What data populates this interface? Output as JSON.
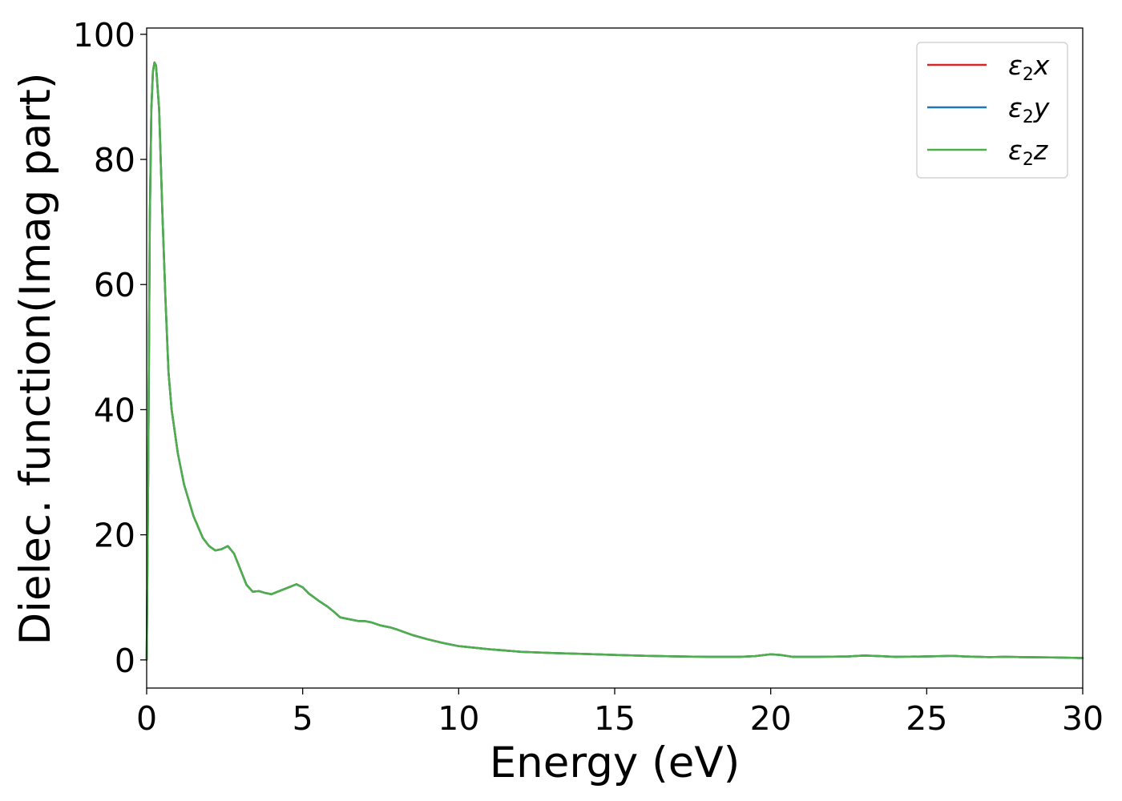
{
  "chart_data": {
    "type": "line",
    "title": "",
    "xlabel": "Energy (eV)",
    "ylabel": "Dielec. function(Imag part)",
    "xlim": [
      0,
      30
    ],
    "ylim": [
      -4.5,
      101
    ],
    "xticks": [
      0,
      5,
      10,
      15,
      20,
      25,
      30
    ],
    "yticks": [
      0,
      20,
      40,
      60,
      80,
      100
    ],
    "grid": false,
    "legend_position": "upper right",
    "x": [
      0,
      0.05,
      0.1,
      0.15,
      0.2,
      0.25,
      0.3,
      0.4,
      0.5,
      0.6,
      0.7,
      0.8,
      1.0,
      1.2,
      1.5,
      1.8,
      2.0,
      2.2,
      2.4,
      2.6,
      2.8,
      3.0,
      3.2,
      3.4,
      3.6,
      3.8,
      4.0,
      4.2,
      4.5,
      4.8,
      5.0,
      5.2,
      5.5,
      5.8,
      6.0,
      6.2,
      6.5,
      6.8,
      7.0,
      7.2,
      7.5,
      7.8,
      8.0,
      8.5,
      9.0,
      9.5,
      10.0,
      11.0,
      12.0,
      13.0,
      14.0,
      15.0,
      16.0,
      17.0,
      18.0,
      19.0,
      19.5,
      20.0,
      20.3,
      20.7,
      21.5,
      22.5,
      23.0,
      23.5,
      24.0,
      25.0,
      25.5,
      25.8,
      26.2,
      27.0,
      27.5,
      28.0,
      29.0,
      30.0
    ],
    "series": [
      {
        "name": "ε2x",
        "color": "#d62728",
        "values": [
          0,
          30,
          70,
          88,
          94,
          95.5,
          95,
          88,
          72,
          58,
          46,
          40,
          33,
          28,
          23,
          19.5,
          18.2,
          17.5,
          17.7,
          18.2,
          17,
          14.5,
          12,
          10.9,
          11,
          10.7,
          10.5,
          10.9,
          11.5,
          12.1,
          11.6,
          10.6,
          9.5,
          8.5,
          7.7,
          6.8,
          6.5,
          6.2,
          6.2,
          6.0,
          5.5,
          5.2,
          4.9,
          4.0,
          3.3,
          2.7,
          2.2,
          1.7,
          1.3,
          1.1,
          0.95,
          0.8,
          0.65,
          0.55,
          0.5,
          0.5,
          0.6,
          0.9,
          0.8,
          0.5,
          0.5,
          0.55,
          0.7,
          0.6,
          0.5,
          0.55,
          0.6,
          0.65,
          0.55,
          0.45,
          0.5,
          0.45,
          0.4,
          0.3
        ]
      },
      {
        "name": "ε2y",
        "color": "#1f77b4",
        "values": [
          0,
          30,
          70,
          88,
          94,
          95.5,
          95,
          88,
          72,
          58,
          46,
          40,
          33,
          28,
          23,
          19.5,
          18.2,
          17.5,
          17.7,
          18.2,
          17,
          14.5,
          12,
          10.9,
          11,
          10.7,
          10.5,
          10.9,
          11.5,
          12.1,
          11.6,
          10.6,
          9.5,
          8.5,
          7.7,
          6.8,
          6.5,
          6.2,
          6.2,
          6.0,
          5.5,
          5.2,
          4.9,
          4.0,
          3.3,
          2.7,
          2.2,
          1.7,
          1.3,
          1.1,
          0.95,
          0.8,
          0.65,
          0.55,
          0.5,
          0.5,
          0.6,
          0.9,
          0.8,
          0.5,
          0.5,
          0.55,
          0.7,
          0.6,
          0.5,
          0.55,
          0.6,
          0.65,
          0.55,
          0.45,
          0.5,
          0.45,
          0.4,
          0.3
        ]
      },
      {
        "name": "ε2z",
        "color": "#4daf4a",
        "values": [
          0,
          30,
          70,
          88,
          94,
          95.5,
          95,
          88,
          72,
          58,
          46,
          40,
          33,
          28,
          23,
          19.5,
          18.2,
          17.5,
          17.7,
          18.2,
          17,
          14.5,
          12,
          10.9,
          11,
          10.7,
          10.5,
          10.9,
          11.5,
          12.1,
          11.6,
          10.6,
          9.5,
          8.5,
          7.7,
          6.8,
          6.5,
          6.2,
          6.2,
          6.0,
          5.5,
          5.2,
          4.9,
          4.0,
          3.3,
          2.7,
          2.2,
          1.7,
          1.3,
          1.1,
          0.95,
          0.8,
          0.65,
          0.55,
          0.5,
          0.5,
          0.6,
          0.9,
          0.8,
          0.5,
          0.5,
          0.55,
          0.7,
          0.6,
          0.5,
          0.55,
          0.6,
          0.65,
          0.55,
          0.45,
          0.5,
          0.45,
          0.4,
          0.3
        ]
      }
    ],
    "legend": [
      {
        "symbol": "ε",
        "sub": "2",
        "var": "x"
      },
      {
        "symbol": "ε",
        "sub": "2",
        "var": "y"
      },
      {
        "symbol": "ε",
        "sub": "2",
        "var": "z"
      }
    ]
  }
}
